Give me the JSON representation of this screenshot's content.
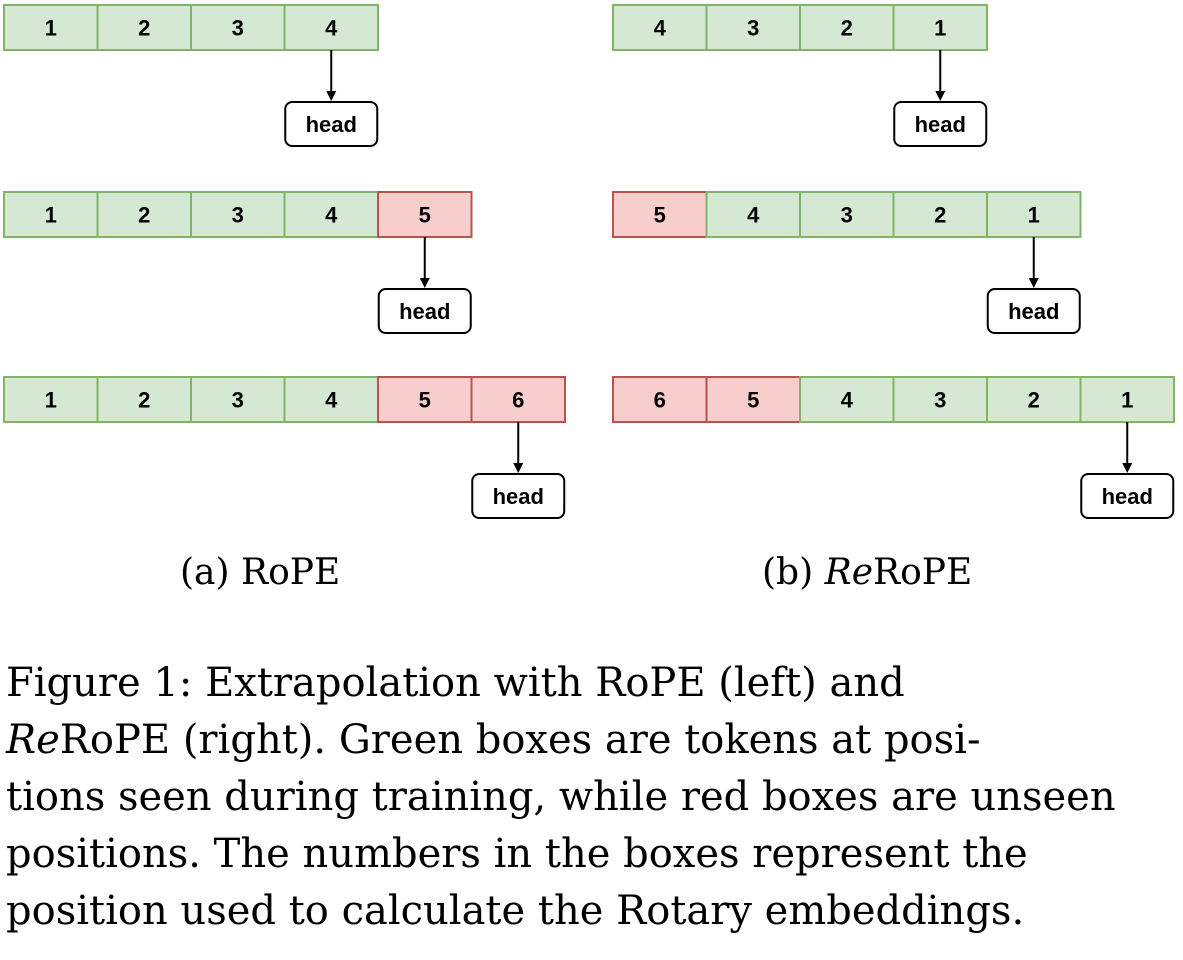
{
  "figure": {
    "rope_panel": {
      "label_prefix": "(a)",
      "label_name": "RoPE",
      "rows": [
        {
          "cells": [
            {
              "value": "1",
              "status": "seen"
            },
            {
              "value": "2",
              "status": "seen"
            },
            {
              "value": "3",
              "status": "seen"
            },
            {
              "value": "4",
              "status": "seen"
            }
          ],
          "head_at": 3,
          "head_label": "head"
        },
        {
          "cells": [
            {
              "value": "1",
              "status": "seen"
            },
            {
              "value": "2",
              "status": "seen"
            },
            {
              "value": "3",
              "status": "seen"
            },
            {
              "value": "4",
              "status": "seen"
            },
            {
              "value": "5",
              "status": "unseen"
            }
          ],
          "head_at": 4,
          "head_label": "head"
        },
        {
          "cells": [
            {
              "value": "1",
              "status": "seen"
            },
            {
              "value": "2",
              "status": "seen"
            },
            {
              "value": "3",
              "status": "seen"
            },
            {
              "value": "4",
              "status": "seen"
            },
            {
              "value": "5",
              "status": "unseen"
            },
            {
              "value": "6",
              "status": "unseen"
            }
          ],
          "head_at": 5,
          "head_label": "head"
        }
      ]
    },
    "rerope_panel": {
      "label_prefix": "(b)",
      "label_italic": "Re",
      "label_name": "RoPE",
      "rows": [
        {
          "cells": [
            {
              "value": "4",
              "status": "seen"
            },
            {
              "value": "3",
              "status": "seen"
            },
            {
              "value": "2",
              "status": "seen"
            },
            {
              "value": "1",
              "status": "seen"
            }
          ],
          "head_at": 3,
          "head_label": "head"
        },
        {
          "cells": [
            {
              "value": "5",
              "status": "unseen"
            },
            {
              "value": "4",
              "status": "seen"
            },
            {
              "value": "3",
              "status": "seen"
            },
            {
              "value": "2",
              "status": "seen"
            },
            {
              "value": "1",
              "status": "seen"
            }
          ],
          "head_at": 4,
          "head_label": "head"
        },
        {
          "cells": [
            {
              "value": "6",
              "status": "unseen"
            },
            {
              "value": "5",
              "status": "unseen"
            },
            {
              "value": "4",
              "status": "seen"
            },
            {
              "value": "3",
              "status": "seen"
            },
            {
              "value": "2",
              "status": "seen"
            },
            {
              "value": "1",
              "status": "seen"
            }
          ],
          "head_at": 5,
          "head_label": "head"
        }
      ]
    },
    "colors": {
      "seen_fill": "#d5e8d4",
      "seen_stroke": "#82b366",
      "unseen_fill": "#f8cecc",
      "unseen_stroke": "#b85450"
    }
  },
  "caption": {
    "line1": "Figure 1:  Extrapolation with RoPE (left) and",
    "line2_italic": "Re",
    "line2_rest": "RoPE (right).  Green boxes are tokens at posi-",
    "line3": "tions seen during training, while red boxes are unseen",
    "line4": "positions.  The numbers in the boxes represent the",
    "line5": "position used to calculate the Rotary embeddings."
  }
}
